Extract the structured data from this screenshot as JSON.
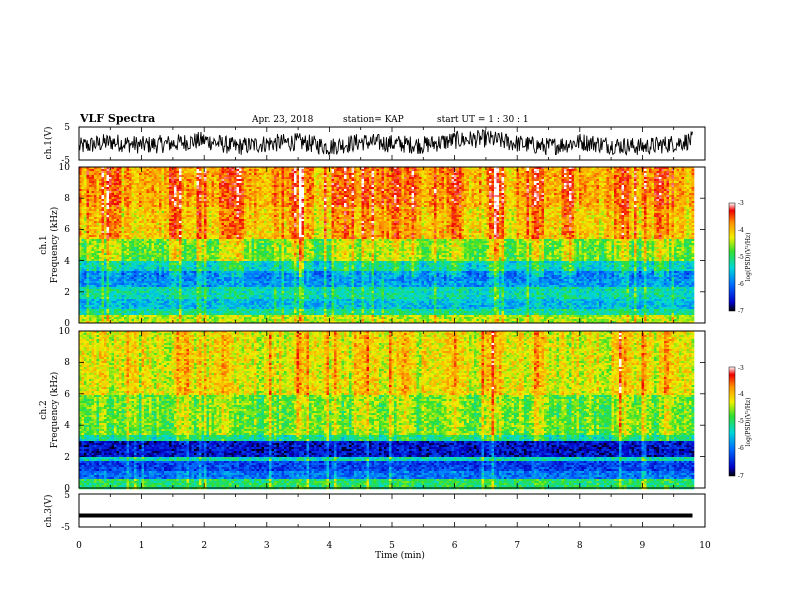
{
  "header": {
    "title": "VLF Spectra",
    "date": "Apr. 23, 2018",
    "station": "station= KAP",
    "start": "start  UT =  1 : 30 : 1"
  },
  "x_axis": {
    "label": "Time  (min)",
    "ticks": [
      "0",
      "1",
      "2",
      "3",
      "4",
      "5",
      "6",
      "7",
      "8",
      "9",
      "10"
    ]
  },
  "chart_data": [
    {
      "type": "line",
      "panel": "ch1-waveform",
      "ylabel": "ch.1(V)",
      "yticks": [
        "5",
        "-5"
      ],
      "ylim": [
        -5,
        5
      ],
      "xlim": [
        0,
        10
      ],
      "data_end_min": 9.8,
      "series": [
        {
          "x": [
            0,
            0.5,
            1.0,
            1.5,
            2.0,
            2.5,
            3.0,
            3.5,
            4.0,
            4.5,
            5.0,
            5.5,
            6.0,
            6.5,
            7.0,
            7.5,
            8.0,
            8.5,
            9.0,
            9.5,
            9.8
          ],
          "values": [
            -1,
            0.5,
            -0.5,
            0,
            1,
            -1,
            0,
            0.5,
            -1,
            0.5,
            0,
            -0.5,
            1,
            1.5,
            0,
            -1,
            0.5,
            -0.5,
            -1,
            0,
            1
          ]
        }
      ]
    },
    {
      "type": "heatmap",
      "panel": "ch1-spectrogram",
      "ylabel": "Frequency  (kHz)",
      "panel_label": "ch.1",
      "yticks": [
        "0",
        "2",
        "4",
        "6",
        "8",
        "10"
      ],
      "ylim": [
        0,
        10
      ],
      "xlim": [
        0,
        10
      ],
      "data_end_min": 9.8,
      "colorbar": {
        "label": "log(PSD)(V²/Hz)",
        "range": [
          -7,
          -3
        ],
        "ticks": [
          "-3",
          "-4",
          "-5",
          "-6",
          "-7"
        ]
      },
      "bands": [
        {
          "from": 0.0,
          "to": 0.6,
          "level": -4.5
        },
        {
          "from": 0.6,
          "to": 1.0,
          "level": -5.2
        },
        {
          "from": 1.0,
          "to": 1.6,
          "level": -5.6
        },
        {
          "from": 1.6,
          "to": 2.4,
          "level": -5.3
        },
        {
          "from": 2.4,
          "to": 2.8,
          "level": -5.8
        },
        {
          "from": 2.8,
          "to": 3.4,
          "level": -5.9
        },
        {
          "from": 3.4,
          "to": 4.0,
          "level": -5.4
        },
        {
          "from": 4.0,
          "to": 5.5,
          "level": -4.7
        },
        {
          "from": 5.5,
          "to": 7.5,
          "level": -4.1
        },
        {
          "from": 7.5,
          "to": 10.0,
          "level": -3.9
        }
      ],
      "red_bursts_min": [
        0.5,
        1.5,
        2.3,
        2.5,
        3.5,
        4.2,
        4.6,
        5.0,
        5.3,
        6.0,
        6.6,
        7.3,
        7.8,
        8.65,
        9.3
      ]
    },
    {
      "type": "heatmap",
      "panel": "ch2-spectrogram",
      "ylabel": "Frequency  (kHz)",
      "panel_label": "ch.2",
      "yticks": [
        "0",
        "2",
        "4",
        "6",
        "8",
        "10"
      ],
      "ylim": [
        0,
        10
      ],
      "xlim": [
        0,
        10
      ],
      "data_end_min": 9.8,
      "colorbar": {
        "label": "log(PSD)(V²/Hz)",
        "range": [
          -7,
          -3
        ],
        "ticks": [
          "-3",
          "-4",
          "-5",
          "-6",
          "-7"
        ]
      },
      "bands": [
        {
          "from": 0.0,
          "to": 0.6,
          "level": -5.0
        },
        {
          "from": 0.6,
          "to": 1.2,
          "level": -6.0
        },
        {
          "from": 1.2,
          "to": 1.8,
          "level": -6.3
        },
        {
          "from": 1.8,
          "to": 2.0,
          "level": -5.3
        },
        {
          "from": 2.0,
          "to": 3.0,
          "level": -6.6
        },
        {
          "from": 3.0,
          "to": 3.5,
          "level": -5.2
        },
        {
          "from": 3.5,
          "to": 6.0,
          "level": -4.7
        },
        {
          "from": 6.0,
          "to": 10.0,
          "level": -4.3
        }
      ],
      "red_bursts_min": [
        1.6,
        2.3,
        3.5,
        4.5,
        5.2,
        6.0,
        6.6,
        7.3,
        8.65,
        9.4
      ]
    },
    {
      "type": "line",
      "panel": "ch3-waveform",
      "ylabel": "ch.3(V)",
      "yticks": [
        "5",
        "-5"
      ],
      "ylim": [
        -5,
        5
      ],
      "xlim": [
        0,
        10
      ],
      "data_end_min": 9.8,
      "series": [
        {
          "x": [
            0,
            9.8
          ],
          "values": [
            -1.5,
            -1.5
          ]
        }
      ]
    }
  ]
}
